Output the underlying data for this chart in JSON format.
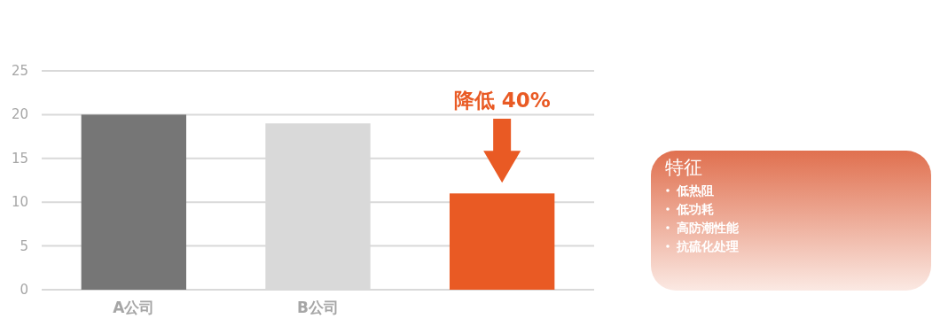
{
  "chart_data": [
    {
      "type": "bar",
      "categories": [
        "A公司",
        "B公司",
        null
      ],
      "values": [
        20,
        19,
        11
      ],
      "colors": [
        "#767676",
        "#d9d9d9",
        "#e95a24"
      ],
      "ylim": [
        0,
        25
      ],
      "yticks": [
        0,
        5,
        10,
        15,
        20,
        25
      ],
      "grid": "y",
      "annotations": [
        "降低 40%"
      ]
    },
    {
      "type": "other",
      "title": "特征",
      "annotations": [
        "低热阻",
        "低功耗",
        "高防潮性能",
        "抗硫化处理"
      ]
    }
  ]
}
